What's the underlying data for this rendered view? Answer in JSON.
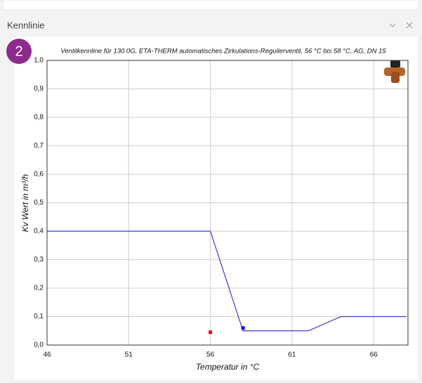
{
  "panel": {
    "title": "Kennlinie",
    "badge": "2"
  },
  "chart_data": {
    "type": "line",
    "title": "Ventilkennline für 130 0G, ETA-THERM automatisches Zirkulations-Regulierventil, 56 °C bis 58 °C, AG, DN 15",
    "x_label": "Temperatur in °C",
    "y_label": "Kv Wert in m³/h",
    "x": [
      46,
      56,
      58,
      62,
      64,
      68
    ],
    "values": [
      0.4,
      0.4,
      0.05,
      0.05,
      0.1,
      0.1
    ],
    "color": "#3a3ad0",
    "points": {
      "x": [
        56,
        58
      ],
      "values": [
        0.045,
        0.06
      ],
      "colors": [
        "#ff0000",
        "#0000ff"
      ]
    },
    "xlim": [
      46,
      68.1
    ],
    "ylim": [
      0,
      1
    ],
    "xticks": [
      46,
      51,
      56,
      61,
      66
    ],
    "yticks": [
      {
        "value": 0,
        "label": "0,0"
      },
      {
        "value": 0.1,
        "label": "0,1"
      },
      {
        "value": 0.2,
        "label": "0,2"
      },
      {
        "value": 0.3,
        "label": "0,3"
      },
      {
        "value": 0.4,
        "label": "0,4"
      },
      {
        "value": 0.5,
        "label": "0,5"
      },
      {
        "value": 0.6,
        "label": "0,6"
      },
      {
        "value": 0.7,
        "label": "0,7"
      },
      {
        "value": 0.8,
        "label": "0,8"
      },
      {
        "value": 0.9,
        "label": "0,9"
      },
      {
        "value": 1,
        "label": "1,0"
      }
    ],
    "grid": true
  }
}
